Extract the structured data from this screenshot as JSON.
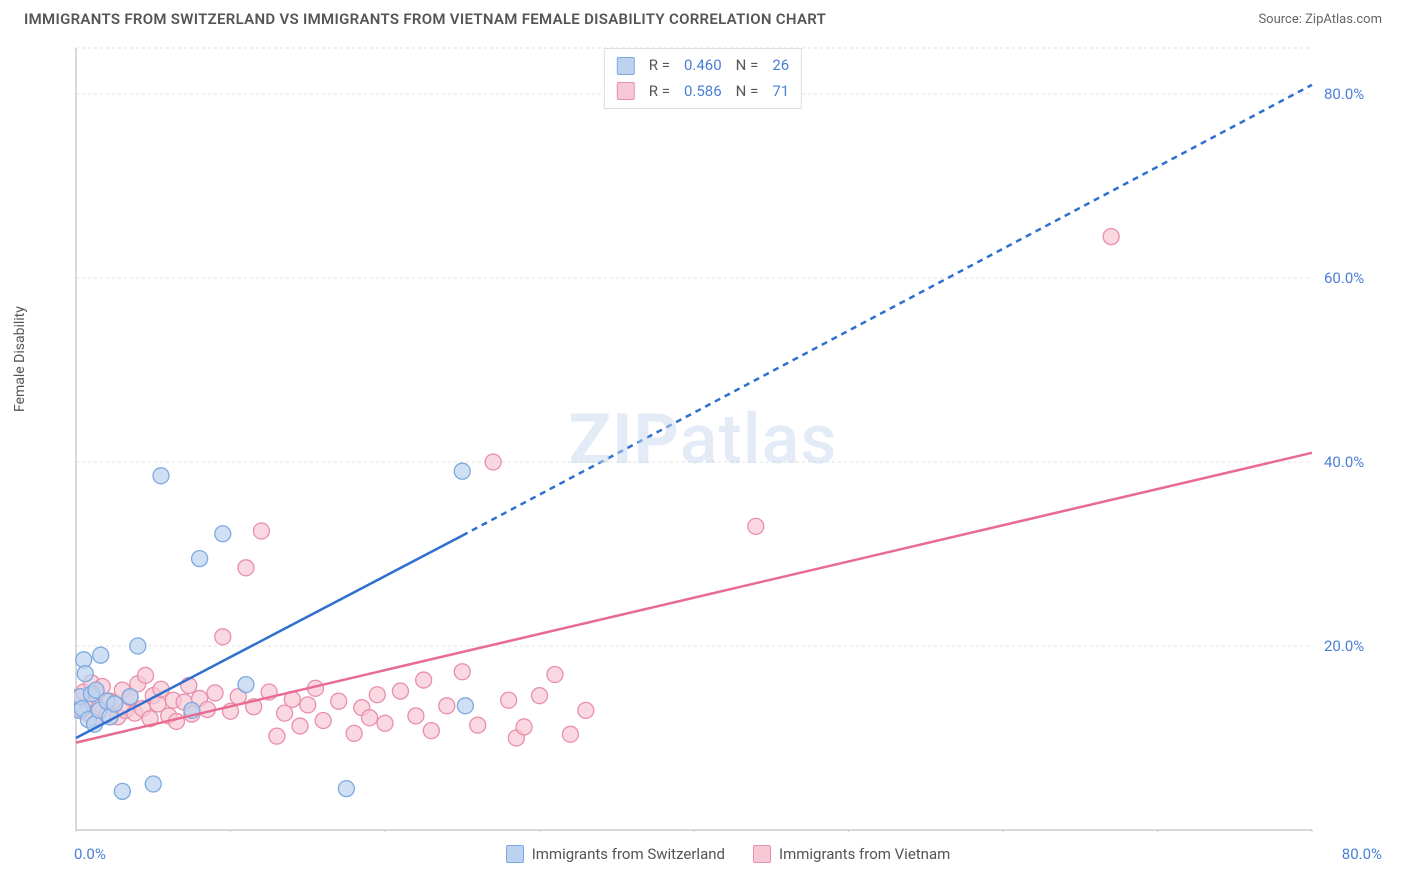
{
  "title": "IMMIGRANTS FROM SWITZERLAND VS IMMIGRANTS FROM VIETNAM FEMALE DISABILITY CORRELATION CHART",
  "source_label": "Source:",
  "source_name": "ZipAtlas.com",
  "watermark": {
    "part1": "ZIP",
    "part2": "atlas"
  },
  "ylabel": "Female Disability",
  "chart": {
    "type": "scatter",
    "background_color": "#ffffff",
    "grid_color": "#e0e0e0",
    "axis_color": "#cccccc",
    "tick_label_color": "#4a7fd6",
    "xlim": [
      0,
      80
    ],
    "ylim": [
      0,
      85
    ],
    "xticks": [
      0,
      10,
      20,
      30,
      40,
      50,
      60,
      70,
      80
    ],
    "xtick_labels": {
      "min": "0.0%",
      "max": "80.0%"
    },
    "yticks": [
      20,
      40,
      60,
      80
    ],
    "ytick_labels": [
      "20.0%",
      "40.0%",
      "60.0%",
      "80.0%"
    ],
    "series": [
      {
        "name": "Immigrants from Switzerland",
        "color_fill": "#bcd3f0",
        "color_stroke": "#7ea9e0",
        "marker_radius": 8,
        "marker_opacity": 0.7,
        "r_label": "R =",
        "r_value": "0.460",
        "n_label": "N =",
        "n_value": "26",
        "trend": {
          "solid": {
            "x1": 0,
            "y1": 10,
            "x2": 25,
            "y2": 32
          },
          "dashed": {
            "x1": 25,
            "y1": 32,
            "x2": 80,
            "y2": 81
          },
          "color": "#2f6fd0",
          "width": 2.5,
          "dash": "6,5"
        },
        "points": [
          [
            0.2,
            13
          ],
          [
            0.3,
            14.5
          ],
          [
            0.4,
            13.2
          ],
          [
            0.5,
            18.5
          ],
          [
            0.6,
            17
          ],
          [
            0.8,
            12
          ],
          [
            1.0,
            14.8
          ],
          [
            1.2,
            11.5
          ],
          [
            1.3,
            15.2
          ],
          [
            1.5,
            13
          ],
          [
            1.6,
            19
          ],
          [
            2.0,
            14
          ],
          [
            2.2,
            12.3
          ],
          [
            2.5,
            13.7
          ],
          [
            3.0,
            4.2
          ],
          [
            3.5,
            14.5
          ],
          [
            4.0,
            20
          ],
          [
            5.0,
            5.0
          ],
          [
            5.5,
            38.5
          ],
          [
            7.5,
            13
          ],
          [
            8.0,
            29.5
          ],
          [
            9.5,
            32.2
          ],
          [
            11.0,
            15.8
          ],
          [
            17.5,
            4.5
          ],
          [
            25.0,
            39.0
          ],
          [
            25.2,
            13.5
          ]
        ]
      },
      {
        "name": "Immigrants from Vietnam",
        "color_fill": "#f6c7d4",
        "color_stroke": "#e98fab",
        "marker_radius": 8,
        "marker_opacity": 0.7,
        "r_label": "R =",
        "r_value": "0.586",
        "n_label": "N =",
        "n_value": "71",
        "trend": {
          "solid": {
            "x1": 0,
            "y1": 9.5,
            "x2": 80,
            "y2": 41
          },
          "dashed": null,
          "color": "#e86b92",
          "width": 2.5
        },
        "points": [
          [
            0.2,
            14.5
          ],
          [
            0.3,
            13
          ],
          [
            0.5,
            15
          ],
          [
            0.6,
            12.8
          ],
          [
            0.8,
            13.5
          ],
          [
            1.0,
            16
          ],
          [
            1.1,
            12.2
          ],
          [
            1.3,
            14.8
          ],
          [
            1.5,
            13.3
          ],
          [
            1.7,
            15.6
          ],
          [
            2.0,
            12.5
          ],
          [
            2.2,
            14
          ],
          [
            2.5,
            13.8
          ],
          [
            2.7,
            12.3
          ],
          [
            3.0,
            15.2
          ],
          [
            3.2,
            13
          ],
          [
            3.5,
            14.4
          ],
          [
            3.8,
            12.7
          ],
          [
            4.0,
            15.9
          ],
          [
            4.3,
            13.2
          ],
          [
            4.5,
            16.8
          ],
          [
            4.8,
            12.1
          ],
          [
            5.0,
            14.6
          ],
          [
            5.3,
            13.7
          ],
          [
            5.5,
            15.3
          ],
          [
            6.0,
            12.4
          ],
          [
            6.3,
            14.1
          ],
          [
            6.5,
            11.8
          ],
          [
            7.0,
            13.9
          ],
          [
            7.3,
            15.7
          ],
          [
            7.5,
            12.6
          ],
          [
            8.0,
            14.3
          ],
          [
            8.5,
            13.1
          ],
          [
            9.0,
            14.9
          ],
          [
            9.5,
            21.0
          ],
          [
            10.0,
            12.9
          ],
          [
            10.5,
            14.5
          ],
          [
            11.0,
            28.5
          ],
          [
            11.5,
            13.4
          ],
          [
            12.0,
            32.5
          ],
          [
            12.5,
            15.0
          ],
          [
            13.0,
            10.2
          ],
          [
            13.5,
            12.7
          ],
          [
            14.0,
            14.2
          ],
          [
            14.5,
            11.3
          ],
          [
            15.0,
            13.6
          ],
          [
            15.5,
            15.4
          ],
          [
            16.0,
            11.9
          ],
          [
            17.0,
            14.0
          ],
          [
            18.0,
            10.5
          ],
          [
            18.5,
            13.3
          ],
          [
            19.0,
            12.2
          ],
          [
            19.5,
            14.7
          ],
          [
            20.0,
            11.6
          ],
          [
            21.0,
            15.1
          ],
          [
            22.0,
            12.4
          ],
          [
            22.5,
            16.3
          ],
          [
            23.0,
            10.8
          ],
          [
            24.0,
            13.5
          ],
          [
            25.0,
            17.2
          ],
          [
            26.0,
            11.4
          ],
          [
            27.0,
            40.0
          ],
          [
            28.0,
            14.1
          ],
          [
            28.5,
            10.0
          ],
          [
            29.0,
            11.2
          ],
          [
            30.0,
            14.6
          ],
          [
            31.0,
            16.9
          ],
          [
            32.0,
            10.4
          ],
          [
            33.0,
            13.0
          ],
          [
            44.0,
            33.0
          ],
          [
            67.0,
            64.5
          ]
        ]
      }
    ]
  }
}
